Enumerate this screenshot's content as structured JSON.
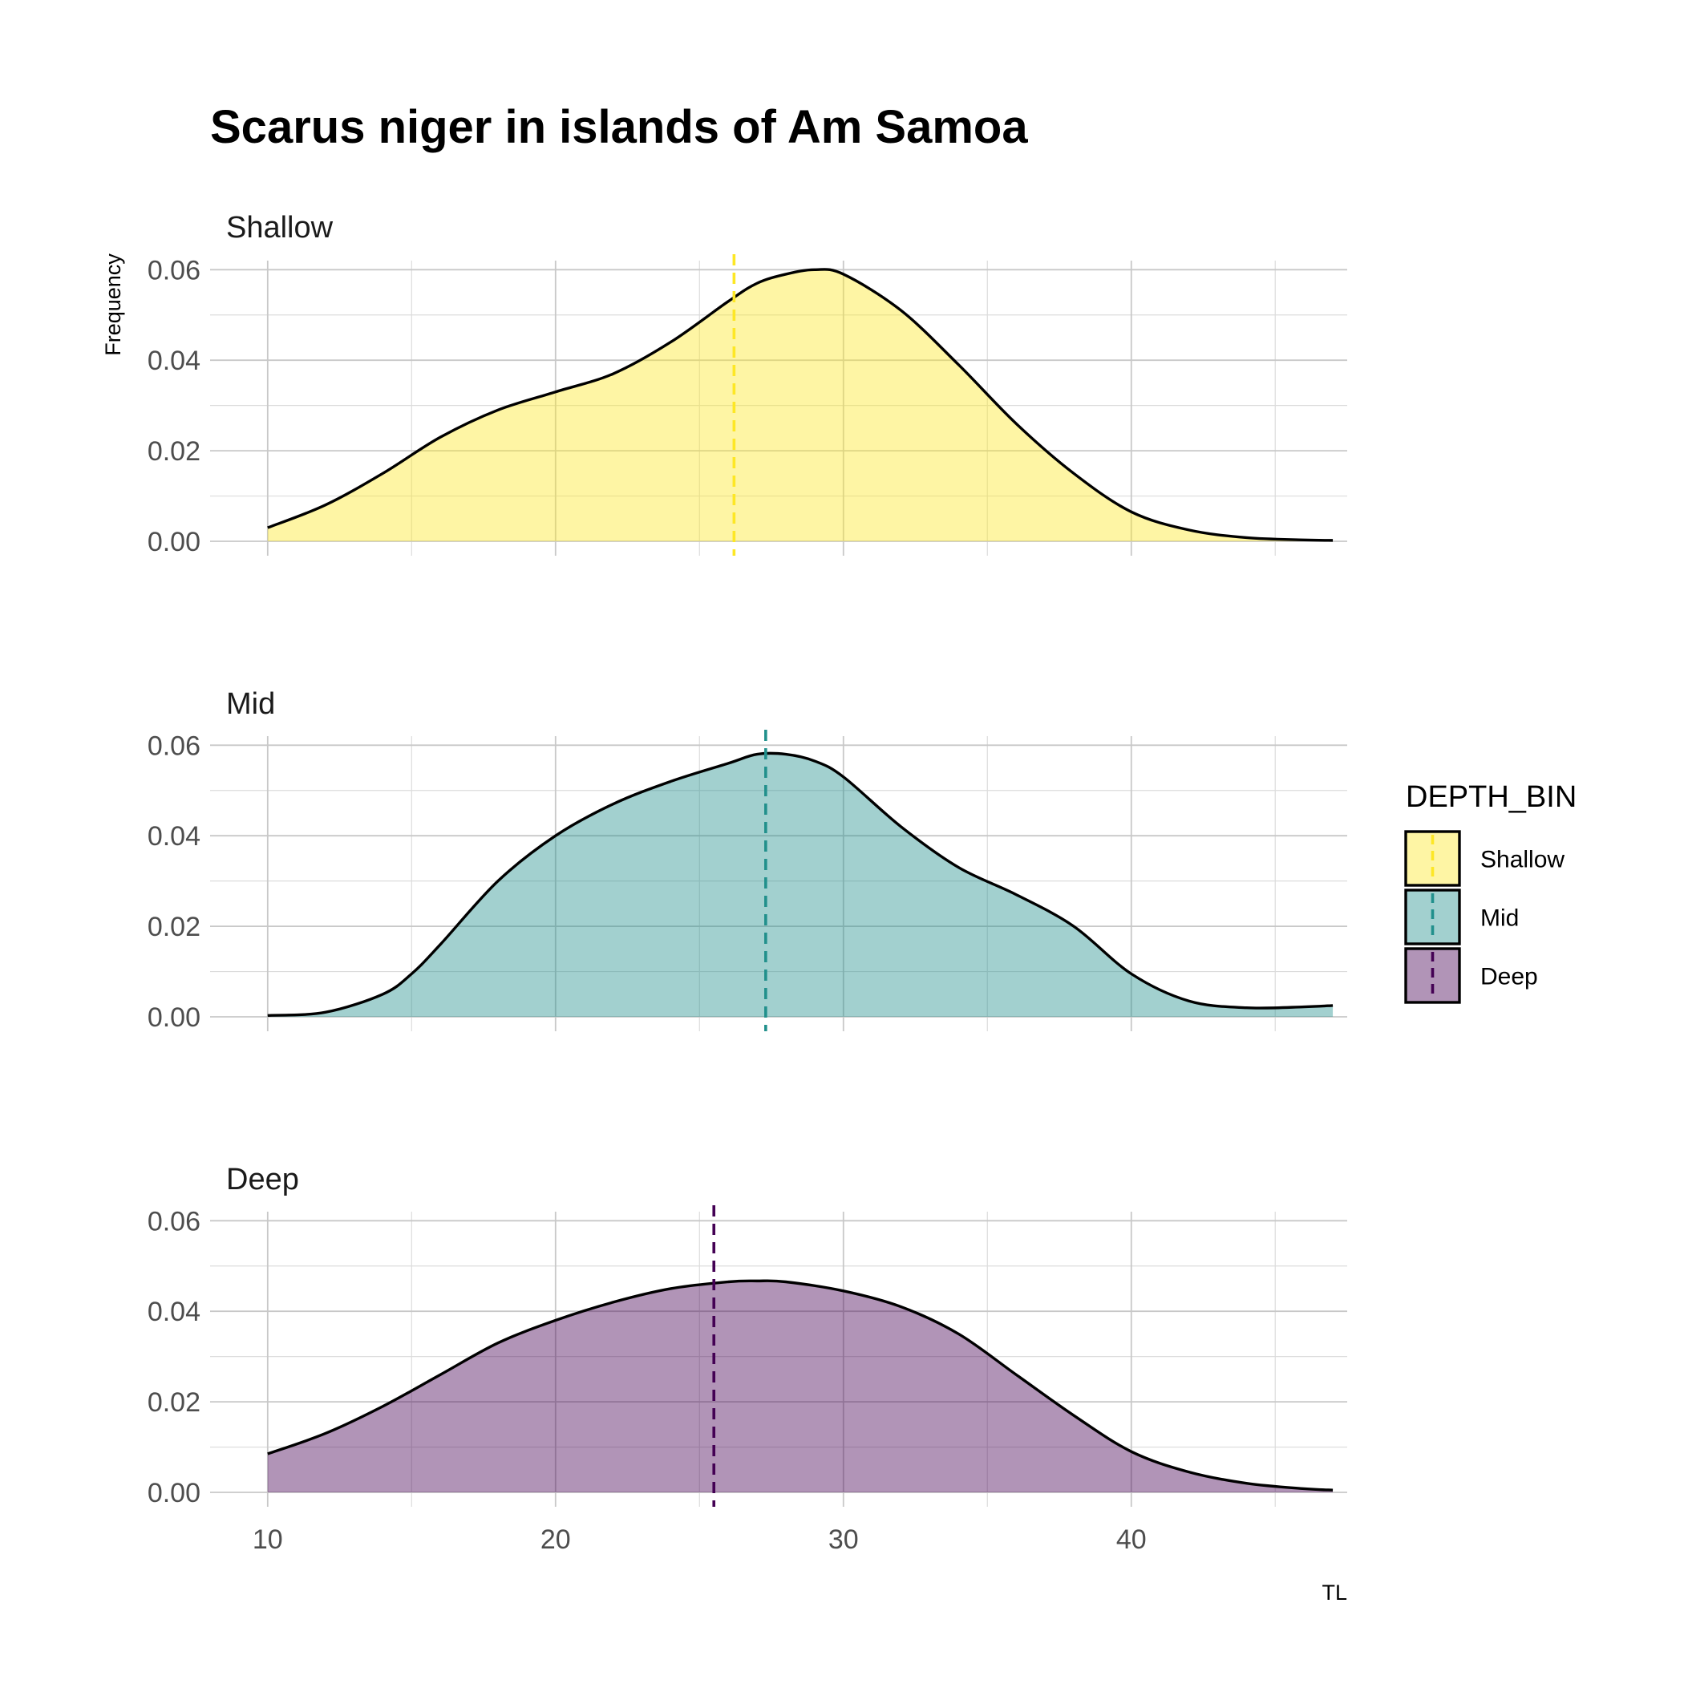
{
  "chart_data": {
    "type": "area",
    "subtype": "density-facets",
    "title": "Scarus niger in islands of Am Samoa",
    "xlabel": "TL",
    "ylabel": "Frequency",
    "xlim": [
      8,
      47.5
    ],
    "ylim": [
      0,
      0.062
    ],
    "x_ticks": [
      10,
      20,
      30,
      40
    ],
    "x_tick_labels": [
      "10",
      "20",
      "30",
      "40"
    ],
    "y_ticks": [
      0,
      0.02,
      0.04,
      0.06
    ],
    "y_tick_labels": [
      "0.00",
      "0.02",
      "0.04",
      "0.06"
    ],
    "grid": true,
    "legend": {
      "title": "DEPTH_BIN",
      "position": "right",
      "entries": [
        "Shallow",
        "Mid",
        "Deep"
      ]
    },
    "facets": [
      {
        "name": "Shallow",
        "fill": "#fde725",
        "line": "#fde725",
        "mean": 26.2,
        "x": [
          10,
          12,
          14,
          16,
          18,
          20,
          22,
          24,
          26,
          27,
          28,
          29,
          30,
          32,
          34,
          36,
          38,
          40,
          42,
          44,
          46,
          47
        ],
        "y": [
          0.003,
          0.008,
          0.015,
          0.023,
          0.029,
          0.033,
          0.037,
          0.044,
          0.053,
          0.057,
          0.059,
          0.06,
          0.059,
          0.051,
          0.039,
          0.026,
          0.015,
          0.0065,
          0.0025,
          0.0008,
          0.0003,
          0.0002
        ]
      },
      {
        "name": "Mid",
        "fill": "#21908c",
        "line": "#21908c",
        "mean": 27.3,
        "x": [
          10,
          12,
          14,
          15,
          16,
          18,
          20,
          22,
          24,
          26,
          27,
          28,
          29,
          30,
          32,
          34,
          36,
          38,
          40,
          42,
          44,
          46,
          47
        ],
        "y": [
          0.0003,
          0.001,
          0.005,
          0.0095,
          0.016,
          0.03,
          0.04,
          0.047,
          0.052,
          0.056,
          0.058,
          0.058,
          0.0565,
          0.053,
          0.042,
          0.033,
          0.027,
          0.02,
          0.0095,
          0.0035,
          0.002,
          0.0022,
          0.0025
        ]
      },
      {
        "name": "Deep",
        "fill": "#440154",
        "line": "#440154",
        "mean": 25.5,
        "x": [
          10,
          12,
          14,
          16,
          18,
          20,
          22,
          24,
          26,
          27,
          28,
          30,
          32,
          34,
          36,
          38,
          40,
          42,
          44,
          46,
          47
        ],
        "y": [
          0.0085,
          0.013,
          0.019,
          0.026,
          0.033,
          0.038,
          0.042,
          0.045,
          0.0465,
          0.0467,
          0.0465,
          0.0445,
          0.041,
          0.035,
          0.026,
          0.017,
          0.009,
          0.0045,
          0.002,
          0.0008,
          0.0005
        ]
      }
    ]
  }
}
